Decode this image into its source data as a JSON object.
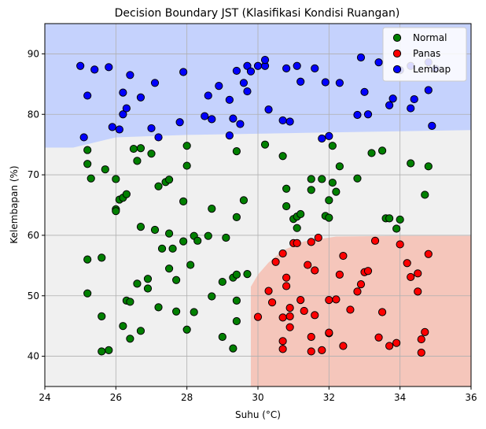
{
  "chart_data": {
    "type": "scatter",
    "title": "Decision Boundary JST (Klasifikasi Kondisi Ruangan)",
    "xlabel": "Suhu (°C)",
    "ylabel": "Kelembapan (%)",
    "xlim": [
      24,
      36
    ],
    "ylim": [
      35,
      95
    ],
    "xticks": [
      24,
      26,
      28,
      30,
      32,
      34,
      36
    ],
    "yticks": [
      40,
      50,
      60,
      70,
      80,
      90
    ],
    "grid": true,
    "legend_position": "top-right",
    "regions": [
      {
        "class": "Lembap",
        "color": "#c5d2fd",
        "boundary": [
          [
            24,
            74.5
          ],
          [
            24.8,
            74.5
          ],
          [
            26,
            76.2
          ],
          [
            28,
            76.6
          ],
          [
            30,
            76.8
          ],
          [
            32,
            77.0
          ],
          [
            34,
            77.2
          ],
          [
            36,
            77.4
          ]
        ]
      },
      {
        "class": "Panas",
        "color": "#f5c6bb",
        "boundary": [
          [
            29.8,
            35
          ],
          [
            29.8,
            51.5
          ],
          [
            30.0,
            53.5
          ],
          [
            30.3,
            55.5
          ],
          [
            30.7,
            57.5
          ],
          [
            31.3,
            59.0
          ],
          [
            32.2,
            59.8
          ],
          [
            34.0,
            59.9
          ],
          [
            36,
            59.9
          ]
        ]
      },
      {
        "class": "Normal",
        "color": "#f0f0f0"
      }
    ],
    "series": [
      {
        "name": "Normal",
        "color": "#008000",
        "points": [
          [
            25.2,
            74.1
          ],
          [
            25.2,
            71.8
          ],
          [
            25.3,
            69.4
          ],
          [
            25.7,
            70.9
          ],
          [
            25.2,
            56.0
          ],
          [
            25.6,
            56.3
          ],
          [
            25.2,
            50.4
          ],
          [
            25.6,
            46.6
          ],
          [
            25.6,
            40.8
          ],
          [
            25.8,
            41.0
          ],
          [
            26.0,
            69.3
          ],
          [
            26.0,
            64.3
          ],
          [
            26.0,
            64.0
          ],
          [
            26.1,
            65.9
          ],
          [
            26.2,
            66.2
          ],
          [
            26.2,
            45.0
          ],
          [
            26.3,
            49.2
          ],
          [
            26.3,
            66.8
          ],
          [
            26.4,
            49.0
          ],
          [
            26.4,
            42.9
          ],
          [
            26.5,
            74.3
          ],
          [
            26.6,
            72.3
          ],
          [
            26.7,
            74.4
          ],
          [
            26.7,
            61.4
          ],
          [
            26.6,
            52.0
          ],
          [
            26.7,
            44.2
          ],
          [
            26.9,
            52.8
          ],
          [
            26.9,
            51.2
          ],
          [
            27.0,
            73.5
          ],
          [
            27.1,
            60.9
          ],
          [
            27.2,
            68.1
          ],
          [
            27.2,
            48.1
          ],
          [
            27.3,
            57.8
          ],
          [
            27.4,
            68.8
          ],
          [
            27.5,
            69.2
          ],
          [
            27.5,
            60.3
          ],
          [
            27.5,
            54.5
          ],
          [
            27.6,
            57.8
          ],
          [
            27.7,
            47.4
          ],
          [
            27.7,
            52.6
          ],
          [
            27.9,
            65.6
          ],
          [
            27.9,
            59.0
          ],
          [
            28.0,
            71.5
          ],
          [
            28.0,
            74.8
          ],
          [
            28.0,
            44.4
          ],
          [
            28.1,
            55.1
          ],
          [
            28.2,
            59.9
          ],
          [
            28.2,
            47.3
          ],
          [
            28.3,
            59.1
          ],
          [
            28.6,
            59.9
          ],
          [
            28.7,
            64.4
          ],
          [
            28.7,
            49.9
          ],
          [
            29.0,
            52.3
          ],
          [
            29.0,
            43.2
          ],
          [
            29.1,
            59.6
          ],
          [
            29.3,
            53.0
          ],
          [
            29.3,
            41.3
          ],
          [
            29.4,
            73.9
          ],
          [
            29.4,
            63.0
          ],
          [
            29.4,
            53.5
          ],
          [
            29.4,
            49.2
          ],
          [
            29.4,
            45.8
          ],
          [
            29.6,
            65.8
          ],
          [
            29.7,
            53.6
          ],
          [
            30.2,
            75.0
          ],
          [
            30.7,
            73.1
          ],
          [
            30.8,
            64.8
          ],
          [
            30.8,
            67.7
          ],
          [
            31.0,
            62.7
          ],
          [
            31.1,
            63.1
          ],
          [
            31.1,
            61.2
          ],
          [
            31.2,
            63.5
          ],
          [
            31.5,
            69.3
          ],
          [
            31.5,
            67.5
          ],
          [
            31.8,
            69.3
          ],
          [
            31.9,
            63.2
          ],
          [
            32.0,
            65.8
          ],
          [
            32.0,
            62.9
          ],
          [
            32.1,
            68.7
          ],
          [
            32.1,
            74.8
          ],
          [
            32.2,
            67.2
          ],
          [
            32.3,
            71.4
          ],
          [
            32.8,
            69.4
          ],
          [
            33.2,
            73.6
          ],
          [
            33.5,
            74.0
          ],
          [
            33.6,
            62.8
          ],
          [
            33.7,
            62.8
          ],
          [
            33.9,
            61.1
          ],
          [
            34.0,
            62.6
          ],
          [
            34.3,
            71.9
          ],
          [
            34.7,
            66.7
          ],
          [
            34.8,
            71.4
          ]
        ]
      },
      {
        "name": "Panas",
        "color": "#ff0000",
        "points": [
          [
            30.0,
            46.5
          ],
          [
            30.3,
            50.8
          ],
          [
            30.4,
            48.9
          ],
          [
            30.5,
            55.6
          ],
          [
            30.7,
            57.0
          ],
          [
            30.7,
            46.4
          ],
          [
            30.7,
            42.5
          ],
          [
            30.7,
            41.2
          ],
          [
            30.8,
            53.0
          ],
          [
            30.8,
            51.6
          ],
          [
            30.9,
            44.8
          ],
          [
            30.9,
            48.0
          ],
          [
            30.9,
            46.6
          ],
          [
            31.0,
            58.7
          ],
          [
            31.1,
            58.7
          ],
          [
            31.2,
            49.3
          ],
          [
            31.3,
            47.5
          ],
          [
            31.4,
            55.1
          ],
          [
            31.5,
            58.9
          ],
          [
            31.6,
            54.2
          ],
          [
            31.5,
            43.2
          ],
          [
            31.5,
            40.8
          ],
          [
            31.6,
            46.8
          ],
          [
            31.7,
            59.6
          ],
          [
            31.8,
            41.0
          ],
          [
            32.0,
            49.3
          ],
          [
            32.0,
            43.8
          ],
          [
            32.0,
            43.9
          ],
          [
            32.2,
            49.4
          ],
          [
            32.3,
            53.5
          ],
          [
            32.4,
            56.6
          ],
          [
            32.4,
            41.7
          ],
          [
            32.6,
            47.7
          ],
          [
            32.8,
            50.7
          ],
          [
            32.9,
            51.9
          ],
          [
            33.0,
            53.9
          ],
          [
            33.1,
            54.1
          ],
          [
            33.3,
            59.1
          ],
          [
            33.4,
            43.1
          ],
          [
            33.5,
            47.3
          ],
          [
            33.7,
            41.7
          ],
          [
            33.9,
            42.2
          ],
          [
            34.0,
            58.5
          ],
          [
            34.2,
            55.4
          ],
          [
            34.3,
            53.1
          ],
          [
            34.5,
            53.7
          ],
          [
            34.5,
            50.7
          ],
          [
            34.6,
            40.6
          ],
          [
            34.6,
            42.8
          ],
          [
            34.7,
            44.0
          ],
          [
            34.8,
            56.9
          ]
        ]
      },
      {
        "name": "Lembap",
        "color": "#0000ff",
        "points": [
          [
            25.0,
            88.0
          ],
          [
            25.1,
            76.2
          ],
          [
            25.2,
            83.1
          ],
          [
            25.4,
            87.4
          ],
          [
            25.8,
            87.8
          ],
          [
            25.9,
            77.9
          ],
          [
            26.1,
            77.5
          ],
          [
            26.2,
            83.6
          ],
          [
            26.2,
            80.0
          ],
          [
            26.3,
            81.0
          ],
          [
            26.4,
            86.5
          ],
          [
            26.7,
            82.8
          ],
          [
            27.0,
            77.7
          ],
          [
            27.1,
            85.2
          ],
          [
            27.2,
            76.2
          ],
          [
            27.8,
            78.7
          ],
          [
            27.9,
            87.0
          ],
          [
            28.6,
            83.1
          ],
          [
            28.5,
            79.7
          ],
          [
            28.7,
            79.2
          ],
          [
            28.9,
            84.7
          ],
          [
            29.2,
            82.4
          ],
          [
            29.2,
            76.5
          ],
          [
            29.3,
            79.3
          ],
          [
            29.4,
            87.2
          ],
          [
            29.5,
            78.4
          ],
          [
            29.6,
            85.2
          ],
          [
            29.7,
            88.0
          ],
          [
            29.7,
            83.8
          ],
          [
            29.8,
            87.1
          ],
          [
            30.0,
            88.0
          ],
          [
            30.2,
            88.0
          ],
          [
            30.2,
            89.0
          ],
          [
            30.3,
            80.8
          ],
          [
            30.7,
            79.0
          ],
          [
            30.8,
            87.6
          ],
          [
            30.9,
            78.8
          ],
          [
            31.1,
            88.0
          ],
          [
            31.2,
            85.4
          ],
          [
            31.6,
            87.6
          ],
          [
            31.8,
            76.0
          ],
          [
            31.9,
            85.3
          ],
          [
            32.0,
            76.4
          ],
          [
            32.3,
            85.2
          ],
          [
            32.8,
            79.9
          ],
          [
            32.9,
            89.4
          ],
          [
            33.0,
            83.7
          ],
          [
            33.1,
            80.0
          ],
          [
            33.4,
            88.6
          ],
          [
            33.7,
            81.5
          ],
          [
            33.8,
            82.6
          ],
          [
            34.0,
            87.3
          ],
          [
            34.3,
            81.0
          ],
          [
            34.3,
            88.0
          ],
          [
            34.4,
            82.5
          ],
          [
            34.8,
            84.0
          ],
          [
            34.9,
            78.1
          ],
          [
            35.0,
            87.5
          ],
          [
            34.8,
            88.6
          ]
        ]
      }
    ]
  }
}
